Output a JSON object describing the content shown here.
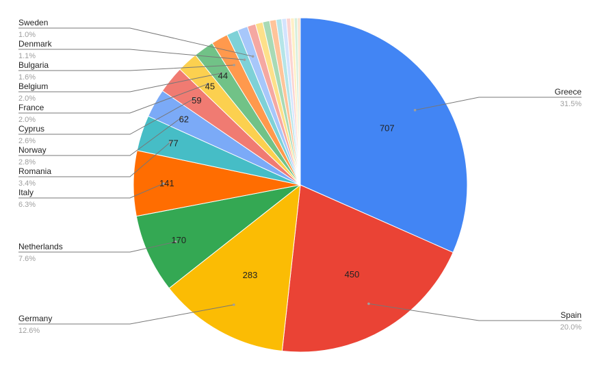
{
  "chart_data": {
    "type": "pie",
    "title": "",
    "legend": "none",
    "label_mode": "values inside slices; name and percentage outside with leader lines",
    "slices": [
      {
        "name": "Greece",
        "value": 707,
        "percent": "31.5%",
        "color": "#4285f4",
        "label": "707",
        "side": "right"
      },
      {
        "name": "Spain",
        "value": 450,
        "percent": "20.0%",
        "color": "#ea4335",
        "label": "450",
        "side": "right"
      },
      {
        "name": "Germany",
        "value": 283,
        "percent": "12.6%",
        "color": "#fbbc04",
        "label": "283",
        "side": "left"
      },
      {
        "name": "Netherlands",
        "value": 170,
        "percent": "7.6%",
        "color": "#34a853",
        "label": "170",
        "side": "left"
      },
      {
        "name": "Italy",
        "value": 141,
        "percent": "6.3%",
        "color": "#ff6d01",
        "label": "141",
        "side": "left"
      },
      {
        "name": "Romania",
        "value": 77,
        "percent": "3.4%",
        "color": "#46bdc6",
        "label": "77",
        "side": "left"
      },
      {
        "name": "Norway",
        "value": 62,
        "percent": "2.8%",
        "color": "#7baaf7",
        "label": "62",
        "side": "left"
      },
      {
        "name": "Cyprus",
        "value": 59,
        "percent": "2.6%",
        "color": "#f07b72",
        "label": "59",
        "side": "left"
      },
      {
        "name": "France",
        "value": 45,
        "percent": "2.0%",
        "color": "#fcd04f",
        "label": "45",
        "side": "left"
      },
      {
        "name": "Belgium",
        "value": 44,
        "percent": "2.0%",
        "color": "#71c287",
        "label": "44",
        "side": "left"
      },
      {
        "name": "Bulgaria",
        "value": 36,
        "percent": "1.6%",
        "color": "#ff994d",
        "label": "",
        "side": "left"
      },
      {
        "name": "Denmark",
        "value": 25,
        "percent": "1.1%",
        "color": "#7ed1d7",
        "label": "",
        "side": "left"
      },
      {
        "name": "Sweden",
        "value": 22,
        "percent": "1.0%",
        "color": "#a7c7fa",
        "label": "",
        "side": "left"
      },
      {
        "name": "",
        "value": 18,
        "percent": "",
        "color": "#f5a8a2",
        "label": "",
        "side": ""
      },
      {
        "name": "",
        "value": 16,
        "percent": "",
        "color": "#fde08a",
        "label": "",
        "side": ""
      },
      {
        "name": "",
        "value": 15,
        "percent": "",
        "color": "#a8dab5",
        "label": "",
        "side": ""
      },
      {
        "name": "",
        "value": 14,
        "percent": "",
        "color": "#ffc49a",
        "label": "",
        "side": ""
      },
      {
        "name": "",
        "value": 12,
        "percent": "",
        "color": "#b5e5e8",
        "label": "",
        "side": ""
      },
      {
        "name": "",
        "value": 10,
        "percent": "",
        "color": "#d3e3fd",
        "label": "",
        "side": ""
      },
      {
        "name": "",
        "value": 9,
        "percent": "",
        "color": "#fbd3d0",
        "label": "",
        "side": ""
      },
      {
        "name": "",
        "value": 8,
        "percent": "",
        "color": "#fef0c7",
        "label": "",
        "side": ""
      },
      {
        "name": "",
        "value": 7,
        "percent": "",
        "color": "#d7efdd",
        "label": "",
        "side": ""
      },
      {
        "name": "",
        "value": 6,
        "percent": "",
        "color": "#ffe1cc",
        "label": "",
        "side": ""
      }
    ]
  }
}
